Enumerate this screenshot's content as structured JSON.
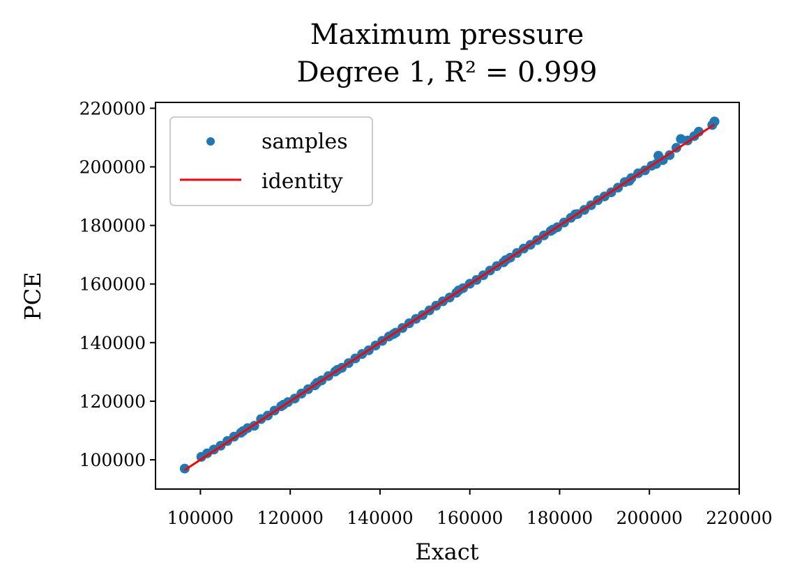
{
  "chart_data": {
    "type": "scatter",
    "title": "Maximum pressure",
    "subtitle": "Degree 1, R² = 0.999",
    "xlabel": "Exact",
    "ylabel": "PCE",
    "xlim": [
      90000,
      220000
    ],
    "ylim": [
      90000,
      222000
    ],
    "xticks": [
      100000,
      120000,
      140000,
      160000,
      180000,
      200000,
      220000
    ],
    "yticks": [
      100000,
      120000,
      140000,
      160000,
      180000,
      200000,
      220000
    ],
    "xtick_labels": [
      "100000",
      "120000",
      "140000",
      "160000",
      "180000",
      "200000",
      "220000"
    ],
    "ytick_labels": [
      "100000",
      "120000",
      "140000",
      "160000",
      "180000",
      "200000",
      "220000"
    ],
    "grid": false,
    "legend": {
      "placement": "top-left",
      "entries": [
        {
          "label": "samples",
          "kind": "marker"
        },
        {
          "label": "identity",
          "kind": "line"
        }
      ]
    },
    "series": [
      {
        "name": "samples",
        "kind": "scatter",
        "color": "#1f77b4",
        "points": [
          [
            96500,
            97000
          ],
          [
            100200,
            101000
          ],
          [
            101500,
            102200
          ],
          [
            103000,
            103500
          ],
          [
            104500,
            104800
          ],
          [
            106000,
            106400
          ],
          [
            107500,
            107900
          ],
          [
            109000,
            109200
          ],
          [
            110500,
            110800
          ],
          [
            112000,
            111600
          ],
          [
            113500,
            113900
          ],
          [
            115000,
            115100
          ],
          [
            116500,
            116800
          ],
          [
            118000,
            118300
          ],
          [
            119500,
            119700
          ],
          [
            121000,
            120900
          ],
          [
            122500,
            122600
          ],
          [
            124000,
            124100
          ],
          [
            125500,
            125400
          ],
          [
            127000,
            127100
          ],
          [
            128500,
            128600
          ],
          [
            130000,
            130100
          ],
          [
            131500,
            131400
          ],
          [
            133000,
            133000
          ],
          [
            134500,
            134600
          ],
          [
            136000,
            136100
          ],
          [
            137500,
            137400
          ],
          [
            139000,
            139000
          ],
          [
            140500,
            140600
          ],
          [
            142000,
            142100
          ],
          [
            143500,
            143400
          ],
          [
            145000,
            145000
          ],
          [
            146500,
            146600
          ],
          [
            148000,
            148100
          ],
          [
            149500,
            149400
          ],
          [
            151000,
            151000
          ],
          [
            152500,
            152600
          ],
          [
            154000,
            154100
          ],
          [
            155500,
            155400
          ],
          [
            157000,
            157000
          ],
          [
            158500,
            158600
          ],
          [
            160000,
            160100
          ],
          [
            161500,
            161400
          ],
          [
            163000,
            163000
          ],
          [
            164500,
            164600
          ],
          [
            166000,
            166100
          ],
          [
            167500,
            167400
          ],
          [
            169000,
            169000
          ],
          [
            170500,
            170600
          ],
          [
            172000,
            172100
          ],
          [
            173500,
            173400
          ],
          [
            175000,
            175000
          ],
          [
            176500,
            176600
          ],
          [
            178000,
            178100
          ],
          [
            179500,
            179400
          ],
          [
            181000,
            181000
          ],
          [
            182500,
            182600
          ],
          [
            184000,
            183900
          ],
          [
            185500,
            185300
          ],
          [
            187000,
            186900
          ],
          [
            188500,
            188600
          ],
          [
            190000,
            189900
          ],
          [
            191500,
            191300
          ],
          [
            193000,
            192900
          ],
          [
            194500,
            194800
          ],
          [
            196000,
            196200
          ],
          [
            197500,
            197800
          ],
          [
            199000,
            198800
          ],
          [
            200500,
            200400
          ],
          [
            202000,
            203800
          ],
          [
            203000,
            202300
          ],
          [
            204500,
            204000
          ],
          [
            206000,
            206500
          ],
          [
            207000,
            209500
          ],
          [
            208500,
            209000
          ],
          [
            210000,
            210500
          ],
          [
            211000,
            212000
          ],
          [
            214500,
            215500
          ],
          [
            214000,
            214300
          ],
          [
            157500,
            157800
          ],
          [
            143000,
            142900
          ],
          [
            118500,
            118800
          ],
          [
            183500,
            183800
          ],
          [
            195500,
            195200
          ],
          [
            168000,
            168200
          ],
          [
            130500,
            130700
          ],
          [
            109500,
            109800
          ],
          [
            201500,
            201000
          ],
          [
            178500,
            178600
          ],
          [
            126000,
            126300
          ]
        ]
      },
      {
        "name": "identity",
        "kind": "line",
        "color": "#ff0000",
        "points": [
          [
            96500,
            96500
          ],
          [
            214500,
            214500
          ]
        ]
      }
    ]
  }
}
